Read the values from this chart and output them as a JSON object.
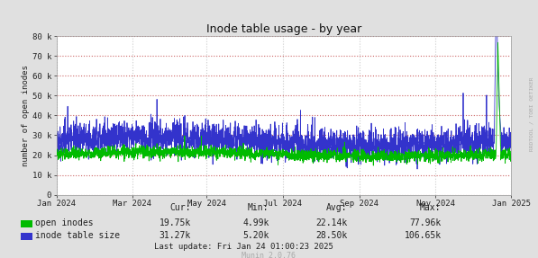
{
  "title": "Inode table usage - by year",
  "ylabel": "number of open inodes",
  "bg_color": "#e0e0e0",
  "plot_bg_color": "#ffffff",
  "grid_color_h": "#cc6666",
  "grid_color_v": "#cccccc",
  "line_color_green": "#00bb00",
  "line_color_blue": "#3333cc",
  "ylim": [
    0,
    80000
  ],
  "yticks": [
    0,
    10000,
    20000,
    30000,
    40000,
    50000,
    60000,
    70000,
    80000
  ],
  "ytick_labels": [
    "0",
    "10 k",
    "20 k",
    "30 k",
    "40 k",
    "50 k",
    "60 k",
    "70 k",
    "80 k"
  ],
  "legend_labels": [
    "open inodes",
    "inode table size"
  ],
  "legend_colors": [
    "#00bb00",
    "#3333cc"
  ],
  "stats_header": [
    "Cur:",
    "Min:",
    "Avg:",
    "Max:"
  ],
  "stats_open": [
    "19.75k",
    "4.99k",
    "22.14k",
    "77.96k"
  ],
  "stats_table": [
    "31.27k",
    "5.20k",
    "28.50k",
    "106.65k"
  ],
  "last_update": "Last update: Fri Jan 24 01:00:23 2025",
  "munin_version": "Munin 2.0.76",
  "watermark": "RRDTOOL / TOBI OETIKER",
  "xticklabels": [
    "Jan 2024",
    "Mar 2024",
    "May 2024",
    "Jul 2024",
    "Sep 2024",
    "Nov 2024",
    "Jan 2025"
  ],
  "xtick_positions": [
    0,
    61,
    121,
    182,
    244,
    305,
    366
  ]
}
